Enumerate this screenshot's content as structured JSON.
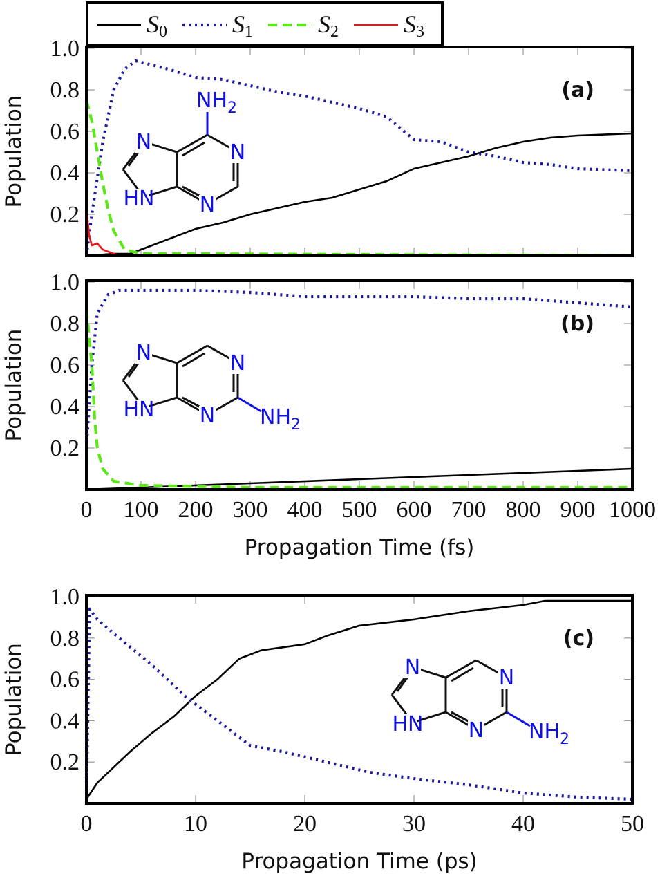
{
  "chart_data": {
    "type": "line",
    "legend": {
      "placement": "top-left, above panels",
      "entries": [
        {
          "name": "S",
          "sub": "0",
          "color": "#000000",
          "style": "solid"
        },
        {
          "name": "S",
          "sub": "1",
          "color": "#1a1a9e",
          "style": "dotted"
        },
        {
          "name": "S",
          "sub": "2",
          "color": "#5ee61a",
          "style": "dashed"
        },
        {
          "name": "S",
          "sub": "3",
          "color": "#e8141a",
          "style": "solid"
        }
      ]
    },
    "panels": [
      {
        "label": "(a)",
        "ylabel": "Population",
        "xlabel": "",
        "xlim": [
          0,
          1000
        ],
        "ylim": [
          0,
          1.0
        ],
        "yticks": [
          "0.2",
          "0.4",
          "0.6",
          "0.8",
          "1.0"
        ],
        "xticks": [],
        "molecule": {
          "amino": "NH",
          "amino_sub": "2",
          "n7": "N",
          "n9": "HN",
          "n1": "N",
          "n3": "N",
          "amino_position": "C6"
        },
        "series": [
          {
            "name": "S0",
            "x": [
              0,
              50,
              80,
              100,
              150,
              200,
              250,
              300,
              350,
              400,
              450,
              500,
              550,
              600,
              650,
              700,
              750,
              800,
              850,
              900,
              1000
            ],
            "y": [
              0,
              0.01,
              0.01,
              0.03,
              0.08,
              0.13,
              0.16,
              0.2,
              0.23,
              0.26,
              0.28,
              0.32,
              0.36,
              0.42,
              0.45,
              0.48,
              0.52,
              0.55,
              0.57,
              0.58,
              0.59
            ]
          },
          {
            "name": "S1",
            "x": [
              0,
              10,
              30,
              50,
              70,
              90,
              120,
              150,
              200,
              250,
              300,
              350,
              400,
              450,
              500,
              550,
              600,
              650,
              700,
              750,
              800,
              850,
              900,
              1000
            ],
            "y": [
              0,
              0.2,
              0.55,
              0.8,
              0.9,
              0.94,
              0.92,
              0.9,
              0.86,
              0.85,
              0.82,
              0.79,
              0.77,
              0.74,
              0.71,
              0.67,
              0.56,
              0.55,
              0.5,
              0.48,
              0.45,
              0.44,
              0.42,
              0.41
            ]
          },
          {
            "name": "S2",
            "x": [
              0,
              10,
              20,
              30,
              40,
              50,
              70,
              100,
              200,
              1000
            ],
            "y": [
              0.75,
              0.65,
              0.5,
              0.35,
              0.22,
              0.12,
              0.03,
              0.01,
              0.01,
              0.0
            ]
          },
          {
            "name": "S3",
            "x": [
              0,
              5,
              10,
              20,
              30,
              40,
              50,
              60,
              1000
            ],
            "y": [
              0.23,
              0.1,
              0.05,
              0.06,
              0.03,
              0.02,
              0.01,
              0.0,
              0.0
            ]
          }
        ]
      },
      {
        "label": "(b)",
        "ylabel": "Population",
        "xlabel": "Propagation Time (fs)",
        "xlim": [
          0,
          1000
        ],
        "ylim": [
          0,
          1.0
        ],
        "yticks": [
          "0.2",
          "0.4",
          "0.6",
          "0.8",
          "1.0"
        ],
        "xticks": [
          "0",
          "100",
          "200",
          "300",
          "400",
          "500",
          "600",
          "700",
          "800",
          "900",
          "1000"
        ],
        "molecule": {
          "amino": "NH",
          "amino_sub": "2",
          "n7": "N",
          "n9": "HN",
          "n1": "N",
          "n3": "N",
          "amino_position": "C2"
        },
        "series": [
          {
            "name": "S0",
            "x": [
              0,
              100,
              300,
              500,
              700,
              900,
              1000
            ],
            "y": [
              0,
              0.01,
              0.03,
              0.05,
              0.07,
              0.09,
              0.1
            ]
          },
          {
            "name": "S1",
            "x": [
              0,
              10,
              20,
              40,
              60,
              100,
              200,
              300,
              400,
              500,
              600,
              700,
              800,
              900,
              1000
            ],
            "y": [
              0.2,
              0.6,
              0.85,
              0.94,
              0.96,
              0.96,
              0.96,
              0.95,
              0.93,
              0.93,
              0.93,
              0.92,
              0.92,
              0.9,
              0.88
            ]
          },
          {
            "name": "S2",
            "x": [
              0,
              10,
              15,
              20,
              30,
              50,
              100,
              300,
              1000
            ],
            "y": [
              0.87,
              0.6,
              0.35,
              0.2,
              0.1,
              0.04,
              0.02,
              0.01,
              0.01
            ]
          }
        ]
      },
      {
        "label": "(c)",
        "ylabel": "Population",
        "xlabel": "Propagation Time (ps)",
        "xlim": [
          0,
          50
        ],
        "ylim": [
          0,
          1.0
        ],
        "yticks": [
          "0.2",
          "0.4",
          "0.6",
          "0.8",
          "1.0"
        ],
        "xticks": [
          "0",
          "10",
          "20",
          "30",
          "40",
          "50"
        ],
        "molecule": {
          "amino": "NH",
          "amino_sub": "2",
          "n7": "N",
          "n9": "HN",
          "n1": "N",
          "n3": "N",
          "amino_position": "C2"
        },
        "series": [
          {
            "name": "S0",
            "x": [
              0,
              1,
              2,
              3,
              4,
              6,
              8,
              10,
              12,
              14,
              16,
              20,
              22,
              25,
              30,
              35,
              40,
              42,
              50
            ],
            "y": [
              0.02,
              0.1,
              0.15,
              0.2,
              0.25,
              0.34,
              0.42,
              0.52,
              0.6,
              0.7,
              0.74,
              0.77,
              0.81,
              0.86,
              0.89,
              0.93,
              0.96,
              0.98,
              0.98
            ]
          },
          {
            "name": "S1",
            "x": [
              0,
              0.3,
              1,
              3,
              6,
              9,
              12,
              15,
              18,
              22,
              26,
              30,
              35,
              40,
              45,
              50
            ],
            "y": [
              0,
              0.94,
              0.89,
              0.8,
              0.67,
              0.52,
              0.4,
              0.28,
              0.25,
              0.2,
              0.15,
              0.12,
              0.09,
              0.05,
              0.03,
              0.02
            ]
          }
        ]
      }
    ]
  }
}
